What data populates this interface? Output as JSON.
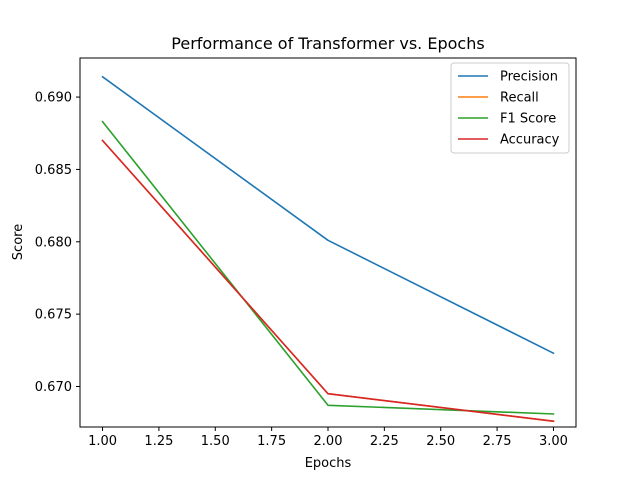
{
  "chart_data": {
    "type": "line",
    "title": "Performance of Transformer vs. Epochs",
    "xlabel": "Epochs",
    "ylabel": "Score",
    "x": [
      1.0,
      2.0,
      3.0
    ],
    "xlim": [
      0.9,
      3.1
    ],
    "ylim": [
      0.6672,
      0.6927
    ],
    "xticks": [
      "1.00",
      "1.25",
      "1.50",
      "1.75",
      "2.00",
      "2.25",
      "2.50",
      "2.75",
      "3.00"
    ],
    "xtick_values": [
      1.0,
      1.25,
      1.5,
      1.75,
      2.0,
      2.25,
      2.5,
      2.75,
      3.0
    ],
    "yticks": [
      "0.670",
      "0.675",
      "0.680",
      "0.685",
      "0.690"
    ],
    "ytick_values": [
      0.67,
      0.675,
      0.68,
      0.685,
      0.69
    ],
    "grid": false,
    "legend_position": "top-right",
    "series": [
      {
        "name": "Precision",
        "color": "#1f77b4",
        "values": [
          0.6914,
          0.6801,
          0.6723
        ]
      },
      {
        "name": "Recall",
        "color": "#ff7f0e",
        "values": [
          0.687,
          0.6695,
          0.6676
        ]
      },
      {
        "name": "F1 Score",
        "color": "#2ca02c",
        "values": [
          0.6883,
          0.6687,
          0.6681
        ]
      },
      {
        "name": "Accuracy",
        "color": "#d62728",
        "values": [
          0.687,
          0.6695,
          0.6676
        ]
      }
    ]
  }
}
